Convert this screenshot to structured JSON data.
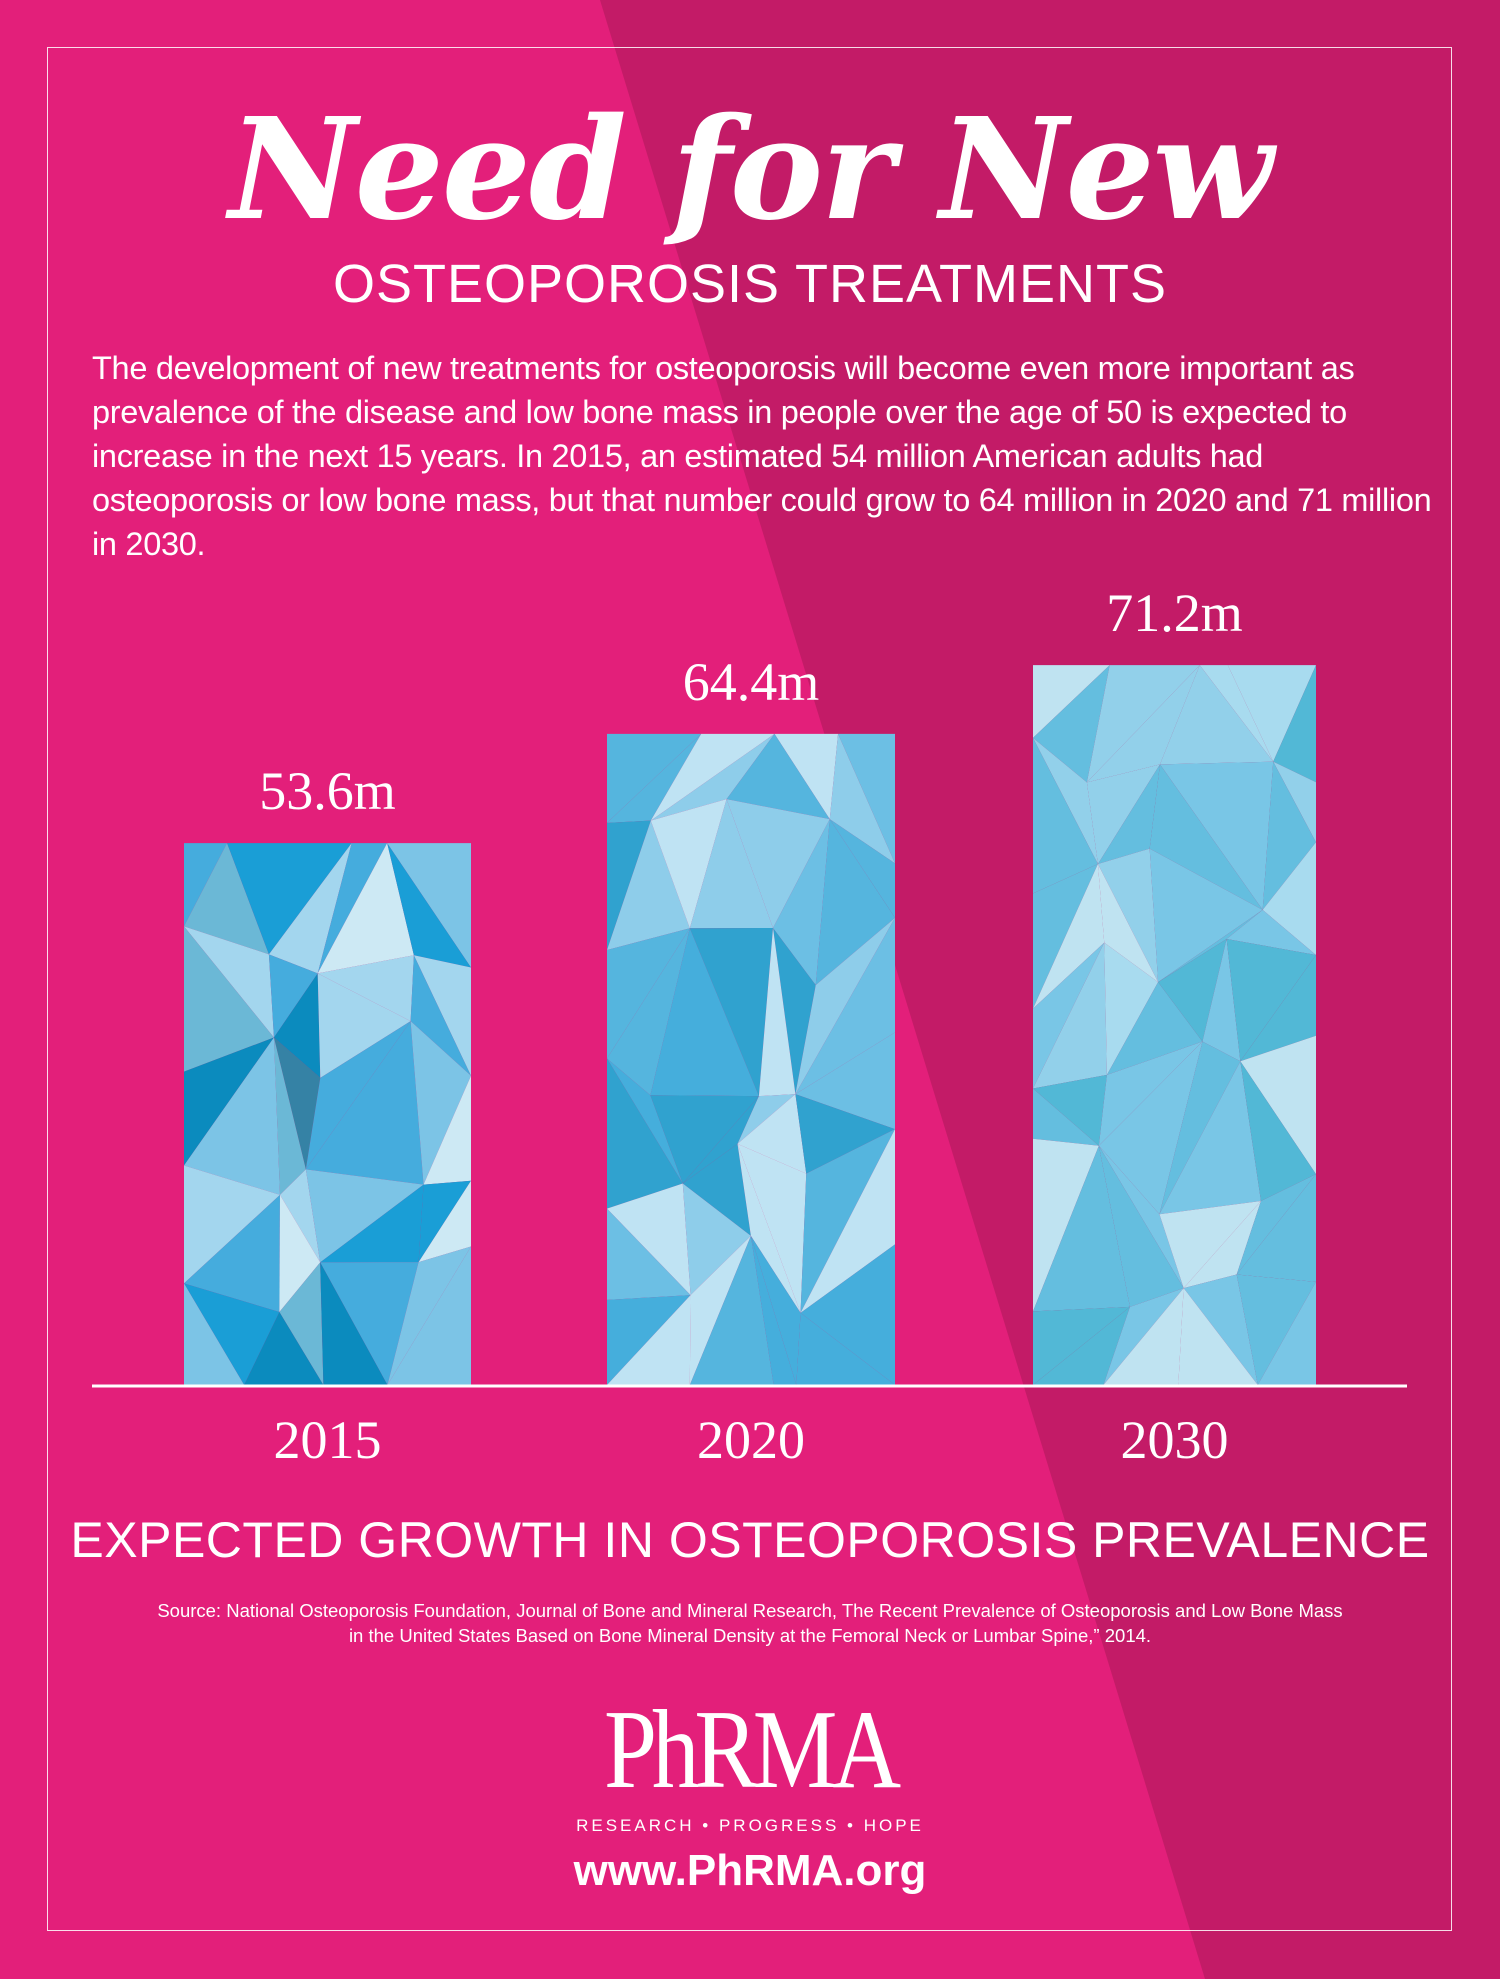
{
  "colors": {
    "background": "#E31F7A",
    "background_dark": "#C31B67",
    "text": "#FFFFFF",
    "bar_palettes": [
      [
        "#1A9ED6",
        "#0B8BBE",
        "#A3D6EE",
        "#CDE9F4",
        "#45ACDD",
        "#6BB8D6",
        "#3582A5",
        "#7CC4E6"
      ],
      [
        "#45AEDC",
        "#6CBFE4",
        "#8ECDEA",
        "#30A2CF",
        "#BFE3F3",
        "#55B5DE"
      ],
      [
        "#52B8D6",
        "#79C6E6",
        "#A8DBEF",
        "#BFE3F1",
        "#64BEDF",
        "#92D0EA"
      ]
    ]
  },
  "header": {
    "title": "Need for New",
    "subtitle": "OSTEOPOROSIS TREATMENTS"
  },
  "intro": "The development of new treatments for osteoporosis will become even more important as prevalence of the disease and low bone mass in people over the age of 50 is expected to increase in the next 15 years. In 2015, an estimated 54 million American adults had osteoporosis or low bone mass, but that number could grow to 64 million in 2020 and 71 million in 2030.",
  "chart_data": {
    "type": "bar",
    "title": "EXPECTED GROWTH IN OSTEOPOROSIS PREVALENCE",
    "categories": [
      "2015",
      "2020",
      "2030"
    ],
    "values": [
      53.6,
      64.4,
      71.2
    ],
    "data_labels": [
      "53.6m",
      "64.4m",
      "71.2m"
    ],
    "unit": "m",
    "ylim": [
      0,
      75
    ],
    "grid": false,
    "y_axis_shown": false
  },
  "source": "Source: National Osteoporosis Foundation, Journal of Bone and Mineral Research, The Recent Prevalence of Osteoporosis and Low Bone Mass in the United States Based on Bone Mineral Density at the Femoral Neck or Lumbar Spine,” 2014.",
  "logo": {
    "text": "PhRMA",
    "tagline": "RESEARCH • PROGRESS • HOPE"
  },
  "url": "www.PhRMA.org"
}
